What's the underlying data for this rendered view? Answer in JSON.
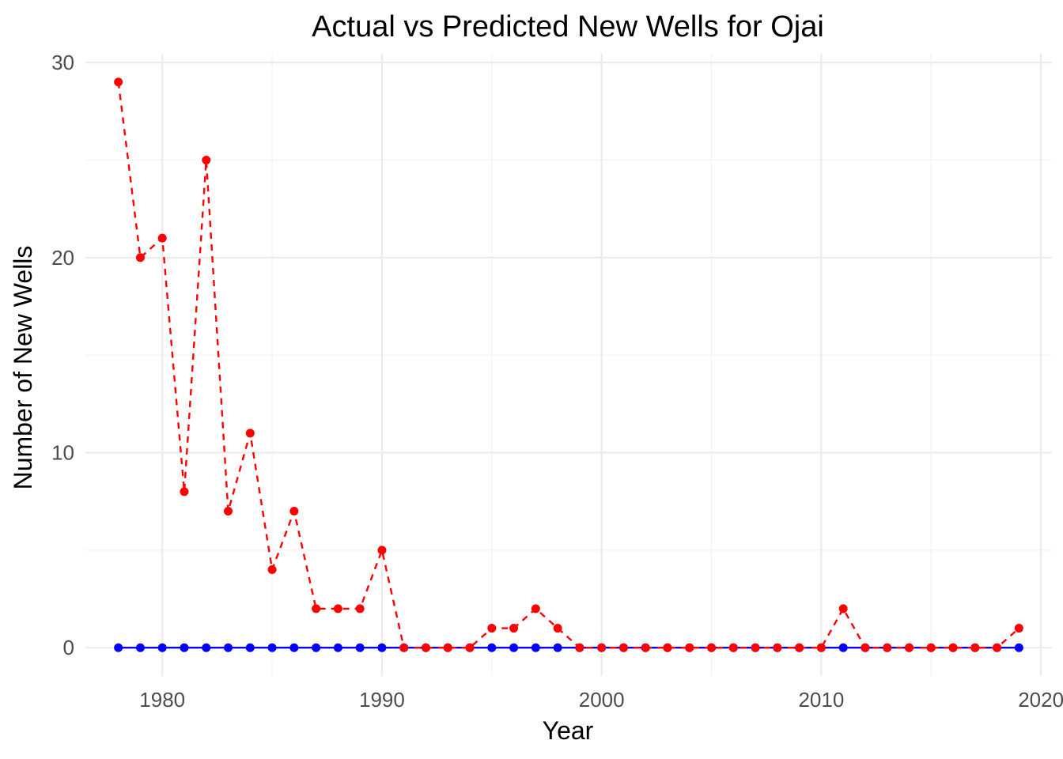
{
  "chart_data": {
    "type": "line",
    "title": "Actual vs Predicted New Wells for Ojai",
    "xlabel": "Year",
    "ylabel": "Number of New Wells",
    "xlim": [
      1976.5,
      2020.5
    ],
    "ylim": [
      -1.45,
      30.45
    ],
    "x_ticks": [
      1980,
      1990,
      2000,
      2010,
      2020
    ],
    "y_ticks": [
      0,
      10,
      20,
      30
    ],
    "grid": true,
    "legend": "none",
    "x": [
      1978,
      1979,
      1980,
      1981,
      1982,
      1983,
      1984,
      1985,
      1986,
      1987,
      1988,
      1989,
      1990,
      1991,
      1992,
      1993,
      1994,
      1995,
      1996,
      1997,
      1998,
      1999,
      2000,
      2001,
      2002,
      2003,
      2004,
      2005,
      2006,
      2007,
      2008,
      2009,
      2010,
      2011,
      2012,
      2013,
      2014,
      2015,
      2016,
      2017,
      2018,
      2019
    ],
    "series": [
      {
        "color": "#0000ff",
        "line_style": "solid",
        "values": [
          0,
          0,
          0,
          0,
          0,
          0,
          0,
          0,
          0,
          0,
          0,
          0,
          0,
          0,
          0,
          0,
          0,
          0,
          0,
          0,
          0,
          0,
          0,
          0,
          0,
          0,
          0,
          0,
          0,
          0,
          0,
          0,
          0,
          0,
          0,
          0,
          0,
          0,
          0,
          0,
          0,
          0
        ]
      },
      {
        "color": "#ff0000",
        "line_style": "dashed",
        "values": [
          29,
          20,
          21,
          8,
          25,
          7,
          11,
          4,
          7,
          2,
          2,
          2,
          5,
          0,
          0,
          0,
          0,
          1,
          1,
          2,
          1,
          0,
          0,
          0,
          0,
          0,
          0,
          0,
          0,
          0,
          0,
          0,
          0,
          2,
          0,
          0,
          0,
          0,
          0,
          0,
          0,
          1
        ]
      }
    ]
  }
}
